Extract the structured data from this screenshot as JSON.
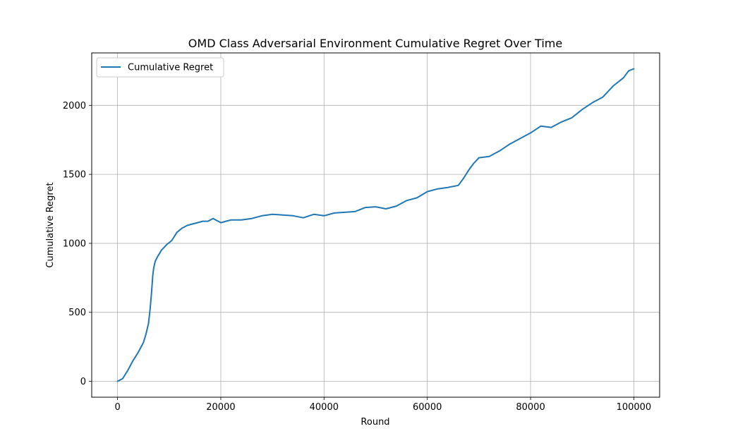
{
  "chart_data": {
    "type": "line",
    "title": "OMD Class Adversarial Environment Cumulative Regret Over Time",
    "xlabel": "Round",
    "ylabel": "Cumulative Regret",
    "xlim": [
      -5000,
      105000
    ],
    "ylim": [
      -115,
      2380
    ],
    "xticks": [
      0,
      20000,
      40000,
      60000,
      80000,
      100000
    ],
    "xtick_labels": [
      "0",
      "20000",
      "40000",
      "60000",
      "80000",
      "100000"
    ],
    "yticks": [
      0,
      500,
      1000,
      1500,
      2000
    ],
    "ytick_labels": [
      "0",
      "500",
      "1000",
      "1500",
      "2000"
    ],
    "grid": true,
    "legend": {
      "position": "top-left",
      "entries": [
        "Cumulative Regret"
      ]
    },
    "series": [
      {
        "name": "Cumulative Regret",
        "color": "#1f77b4",
        "x": [
          0,
          1000,
          2000,
          3000,
          4000,
          5000,
          5500,
          6000,
          6300,
          6600,
          6800,
          7000,
          7300,
          7700,
          8500,
          9500,
          10500,
          11500,
          12500,
          13500,
          14500,
          15500,
          16500,
          17500,
          18500,
          19500,
          20000,
          21000,
          22000,
          24000,
          26000,
          28000,
          30000,
          32000,
          34000,
          36000,
          38000,
          40000,
          42000,
          44000,
          46000,
          48000,
          50000,
          52000,
          54000,
          56000,
          58000,
          60000,
          62000,
          64000,
          66000,
          67000,
          68000,
          69000,
          70000,
          72000,
          74000,
          76000,
          78000,
          80000,
          82000,
          84000,
          86000,
          88000,
          90000,
          92000,
          94000,
          96000,
          98000,
          99000,
          100000
        ],
        "values": [
          0,
          20,
          80,
          150,
          210,
          280,
          340,
          420,
          520,
          650,
          760,
          820,
          870,
          900,
          950,
          990,
          1020,
          1080,
          1110,
          1130,
          1140,
          1150,
          1160,
          1160,
          1180,
          1160,
          1150,
          1160,
          1170,
          1170,
          1180,
          1200,
          1210,
          1205,
          1200,
          1185,
          1210,
          1200,
          1220,
          1225,
          1230,
          1260,
          1265,
          1250,
          1270,
          1310,
          1330,
          1375,
          1395,
          1405,
          1420,
          1470,
          1530,
          1580,
          1620,
          1630,
          1670,
          1720,
          1760,
          1800,
          1850,
          1840,
          1880,
          1910,
          1970,
          2020,
          2060,
          2140,
          2200,
          2250,
          2265
        ]
      }
    ]
  }
}
